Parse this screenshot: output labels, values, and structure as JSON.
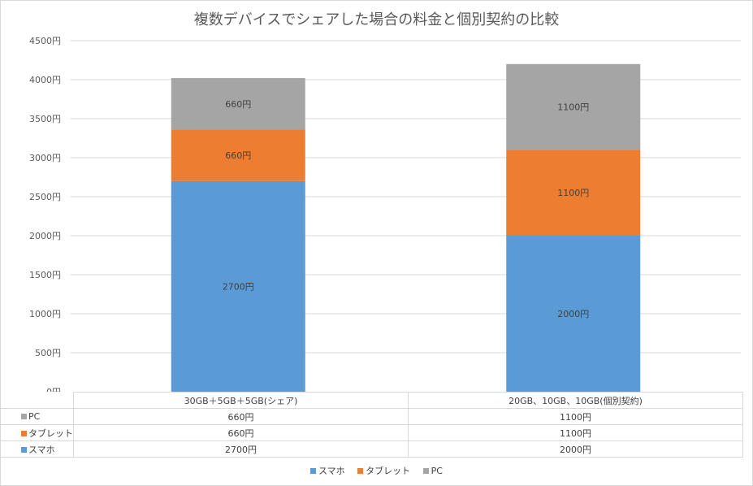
{
  "chart_data": {
    "type": "bar",
    "stacked": true,
    "title": "複数デバイスでシェアした場合の料金と個別契約の比較",
    "categories": [
      "30GB＋5GB＋5GB(シェア)",
      "20GB、10GB、10GB(個別契約)"
    ],
    "series": [
      {
        "name": "スマホ",
        "color": "#5b9bd5",
        "values": [
          2700,
          2000
        ],
        "labels": [
          "2700円",
          "2000円"
        ]
      },
      {
        "name": "タブレット",
        "color": "#ed7d31",
        "values": [
          660,
          1100
        ],
        "labels": [
          "660円",
          "1100円"
        ]
      },
      {
        "name": "PC",
        "color": "#a5a5a5",
        "values": [
          660,
          1100
        ],
        "labels": [
          "660円",
          "1100円"
        ]
      }
    ],
    "ylim": [
      0,
      4500
    ],
    "yticks": [
      {
        "value": 0,
        "label": "0円"
      },
      {
        "value": 500,
        "label": "500円"
      },
      {
        "value": 1000,
        "label": "1000円"
      },
      {
        "value": 1500,
        "label": "1500円"
      },
      {
        "value": 2000,
        "label": "2000円"
      },
      {
        "value": 2500,
        "label": "2500円"
      },
      {
        "value": 3000,
        "label": "3000円"
      },
      {
        "value": 3500,
        "label": "3500円"
      },
      {
        "value": 4000,
        "label": "4000円"
      },
      {
        "value": 4500,
        "label": "4500円"
      }
    ],
    "grid": true,
    "legend_position": "bottom",
    "data_table": true
  }
}
